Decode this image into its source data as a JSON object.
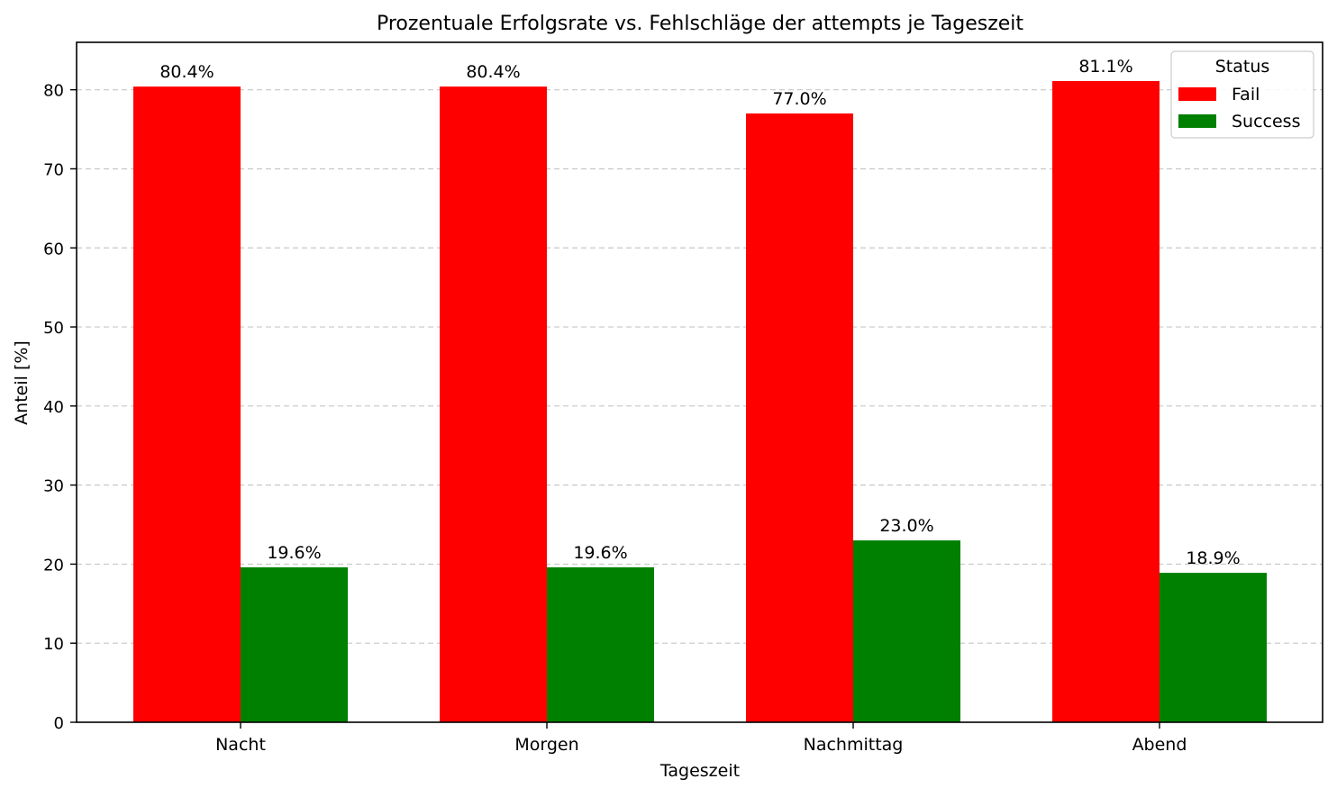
{
  "chart_data": {
    "type": "bar",
    "title": "Prozentuale Erfolgsrate vs. Fehlschläge der attempts je Tageszeit",
    "xlabel": "Tageszeit",
    "ylabel": "Anteil [%]",
    "categories": [
      "Nacht",
      "Morgen",
      "Nachmittag",
      "Abend"
    ],
    "series": [
      {
        "name": "Fail",
        "color": "#ff0000",
        "values": [
          80.4,
          80.4,
          77.0,
          81.1
        ],
        "labels": [
          "80.4%",
          "80.4%",
          "77.0%",
          "81.1%"
        ]
      },
      {
        "name": "Success",
        "color": "#008000",
        "values": [
          19.6,
          19.6,
          23.0,
          18.9
        ],
        "labels": [
          "19.6%",
          "19.6%",
          "23.0%",
          "18.9%"
        ]
      }
    ],
    "ylim": [
      0,
      86
    ],
    "yticks": [
      0,
      10,
      20,
      30,
      40,
      50,
      60,
      70,
      80
    ],
    "grid": "y-dashed",
    "legend": {
      "title": "Status",
      "placement": "top-right"
    }
  }
}
